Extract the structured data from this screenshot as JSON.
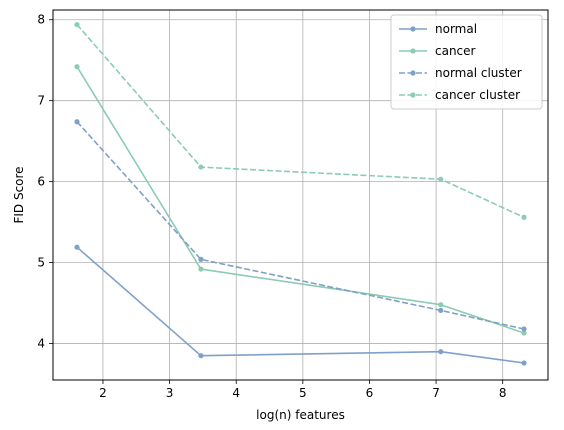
{
  "chart_data": {
    "type": "line",
    "title": "",
    "xlabel": "log(n) features",
    "ylabel": "FID Score",
    "xlim": [
      1.25,
      8.68
    ],
    "ylim": [
      3.55,
      8.12
    ],
    "xticks": [
      2,
      3,
      4,
      5,
      6,
      7,
      8
    ],
    "yticks": [
      4,
      5,
      6,
      7,
      8
    ],
    "grid": true,
    "legend_position": "top-right",
    "x": [
      1.61,
      3.47,
      7.07,
      8.32
    ],
    "series": [
      {
        "name": "normal",
        "values": [
          5.19,
          3.85,
          3.9,
          3.76
        ],
        "color": "#7fa1c8",
        "style": "solid"
      },
      {
        "name": "cancer",
        "values": [
          7.42,
          4.92,
          4.48,
          4.13
        ],
        "color": "#8ccbb4",
        "style": "solid"
      },
      {
        "name": "normal cluster",
        "values": [
          6.74,
          5.04,
          4.41,
          4.18
        ],
        "color": "#7fa1c8",
        "style": "dashed"
      },
      {
        "name": "cancer cluster",
        "values": [
          7.94,
          6.18,
          6.03,
          5.56
        ],
        "color": "#8ccbb4",
        "style": "dashed"
      }
    ]
  }
}
